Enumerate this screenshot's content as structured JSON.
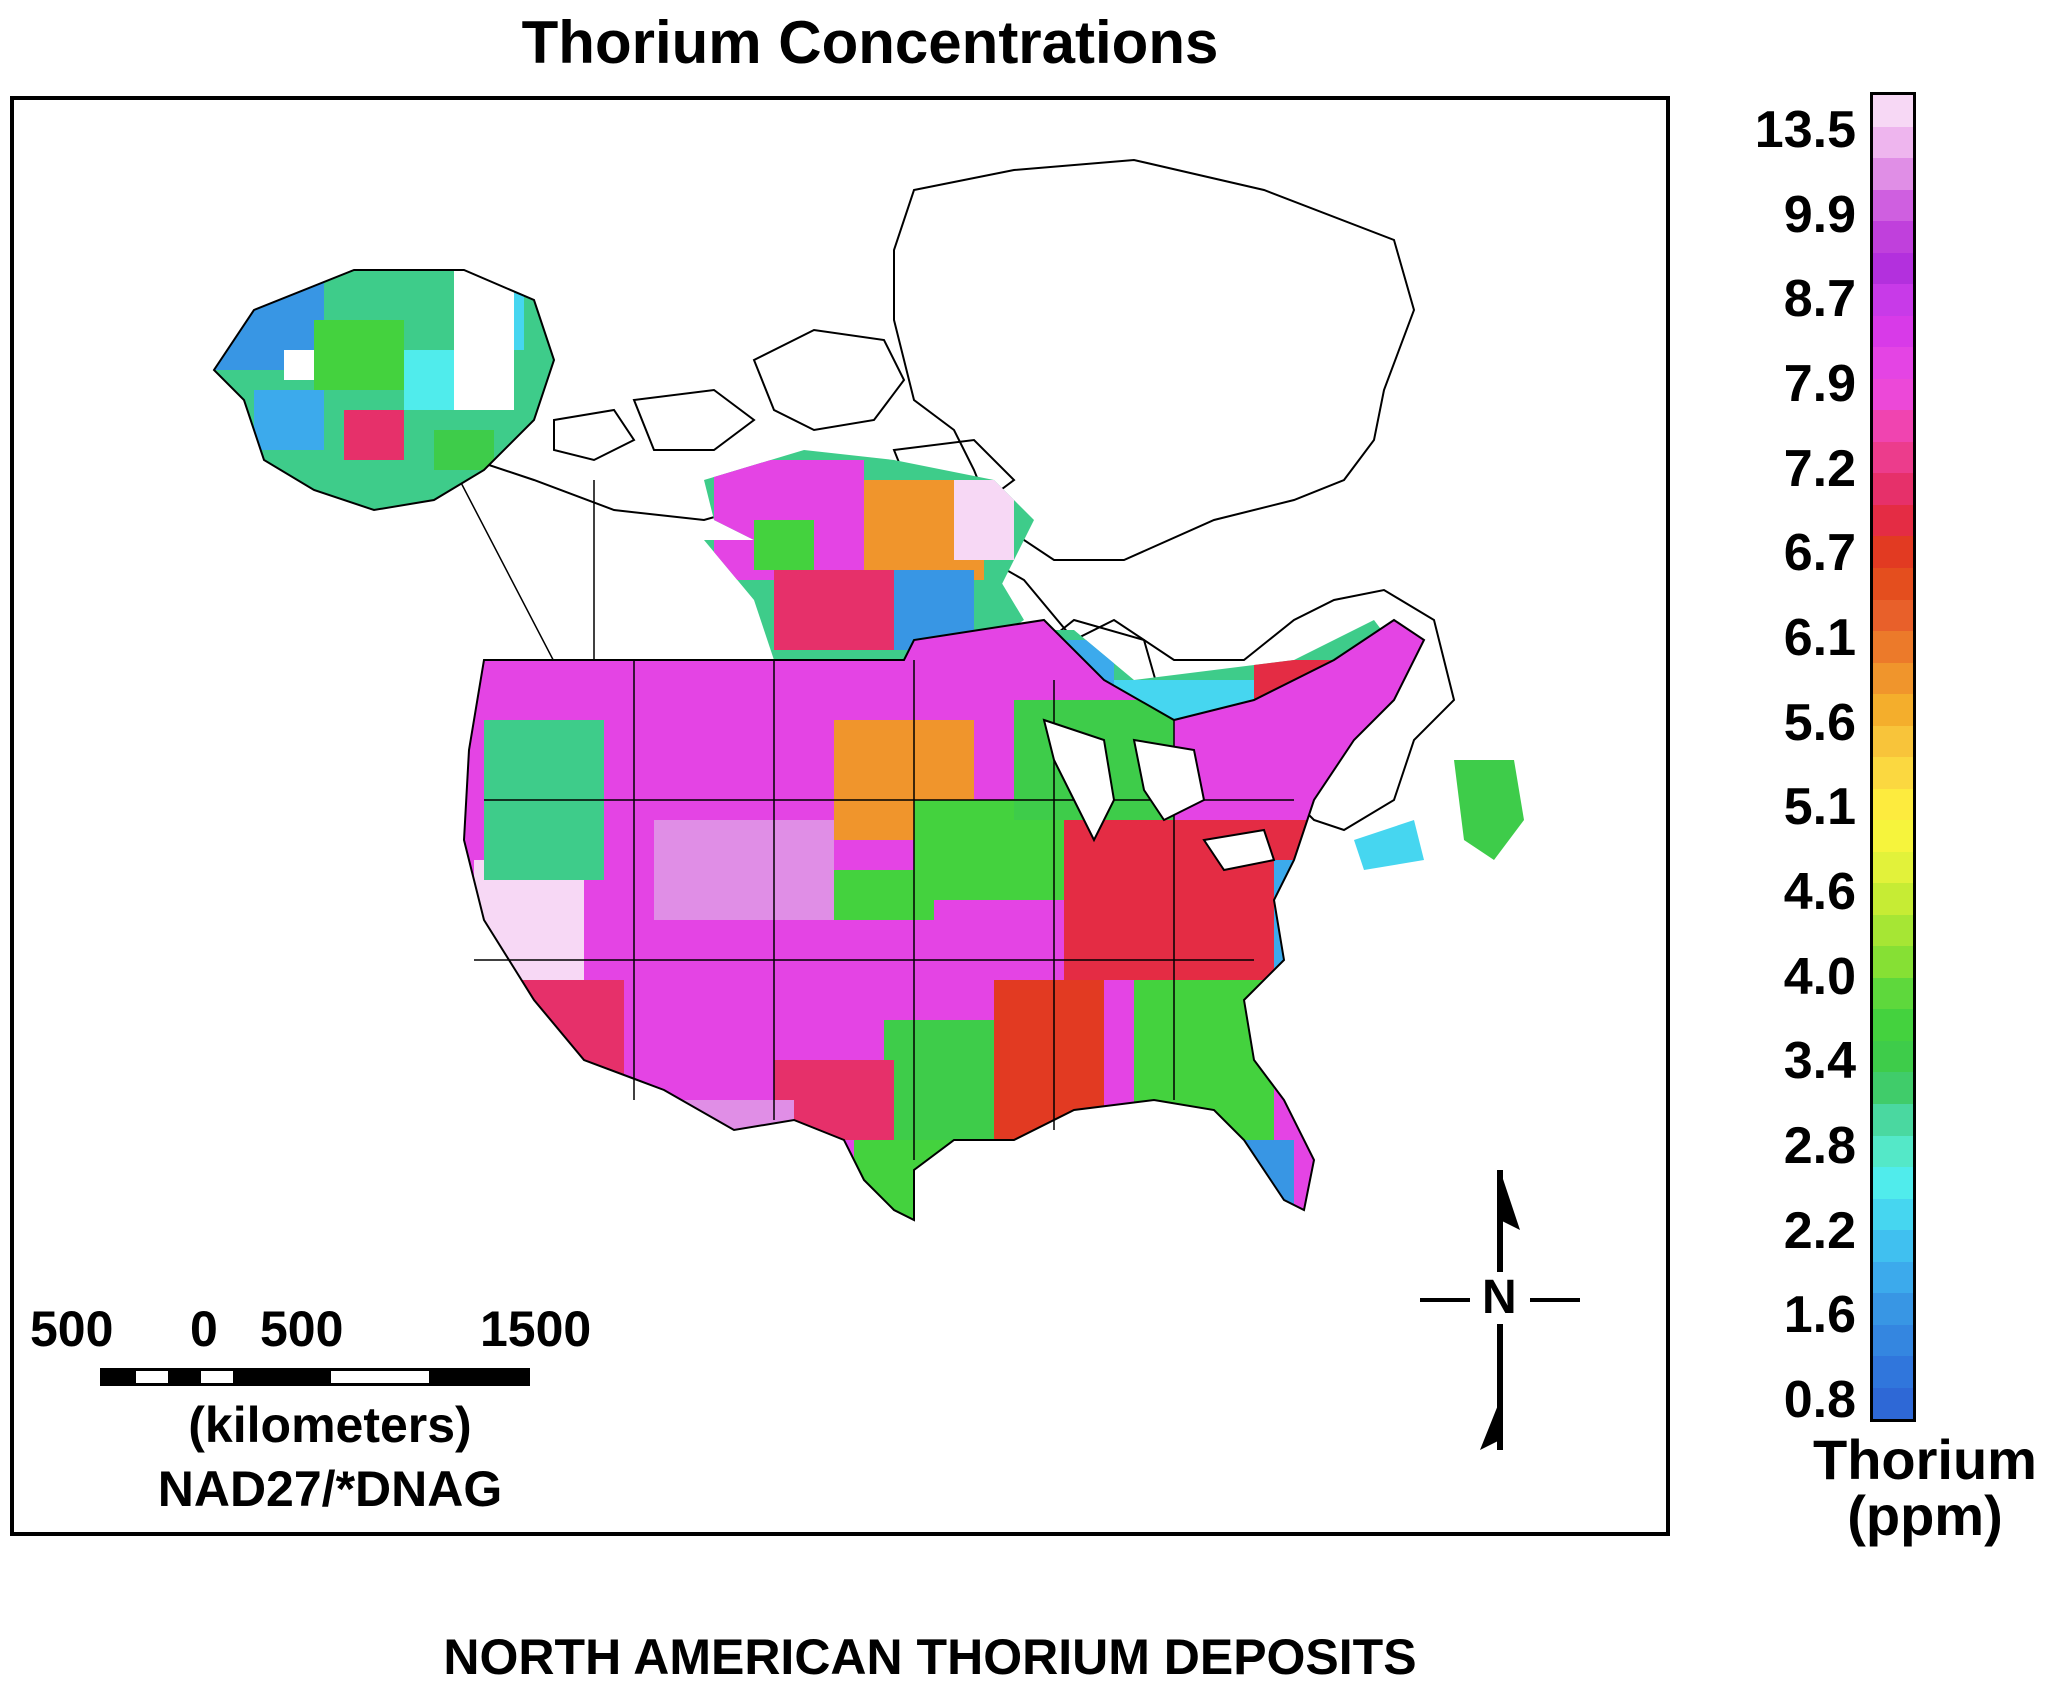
{
  "title": "Thorium Concentrations",
  "footer": "NORTH AMERICAN THORIUM DEPOSITS",
  "scale": {
    "labels": [
      "500",
      "0",
      "500",
      "1500"
    ],
    "unit": "(kilometers)",
    "projection": "NAD27/*DNAG"
  },
  "north_arrow": {
    "label": "N"
  },
  "legend": {
    "title_line1": "Thorium",
    "title_line2": "(ppm)",
    "ticks": [
      "13.5",
      "9.9",
      "8.7",
      "7.9",
      "7.2",
      "6.7",
      "6.1",
      "5.6",
      "5.1",
      "4.6",
      "4.0",
      "3.4",
      "2.8",
      "2.2",
      "1.6",
      "0.8"
    ],
    "colors_top_to_bottom": [
      "#f7d8f5",
      "#eeb5ee",
      "#e08ee6",
      "#cf5fe0",
      "#c040dc",
      "#b330dd",
      "#c83ae8",
      "#d83ae8",
      "#e444e4",
      "#ec48d8",
      "#f044b0",
      "#ec3c8c",
      "#e6306a",
      "#e42c44",
      "#e23a22",
      "#e44e1e",
      "#e8602a",
      "#ec7a2a",
      "#f0952c",
      "#f4ae2c",
      "#f8c43a",
      "#fbd840",
      "#fdeb3e",
      "#f6f43c",
      "#e2f23a",
      "#c6ec34",
      "#a6e634",
      "#86e034",
      "#5ed83c",
      "#44d23e",
      "#3ecc4a",
      "#40cc6a",
      "#4ad8a0",
      "#54e8c8",
      "#50ecec",
      "#46d6f0",
      "#40c0f0",
      "#3caaec",
      "#3896e4",
      "#3486e0",
      "#3076dc",
      "#2e68d6"
    ],
    "colors": {
      "very_high": "#f7d8f5",
      "high": "#e444e4",
      "mid_high": "#e42c44",
      "mid": "#f8c43a",
      "mid_low": "#44d23e",
      "low": "#50ecec",
      "very_low": "#3076dc"
    }
  }
}
